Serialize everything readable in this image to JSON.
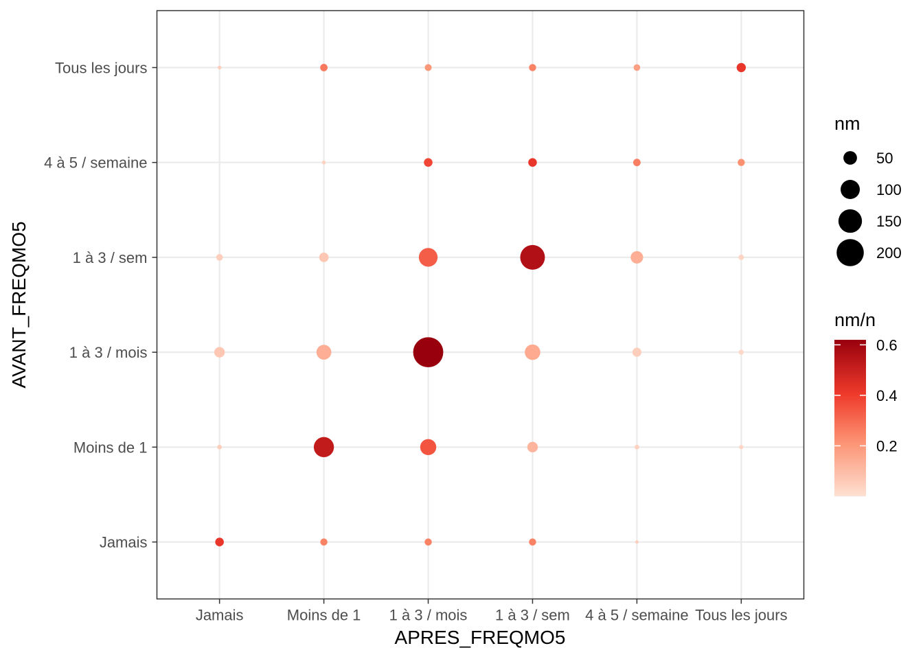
{
  "chart_data": {
    "type": "scatter",
    "xlabel": "APRES_FREQMO5",
    "ylabel": "AVANT_FREQMO5",
    "x_categories": [
      "Jamais",
      "Moins de 1",
      "1 à 3 / mois",
      "1 à 3 / sem",
      "4 à 5 / semaine",
      "Tous les jours"
    ],
    "y_categories": [
      "Jamais",
      "Moins de 1",
      "1 à 3 / mois",
      "1 à 3 / sem",
      "4 à 5 / semaine",
      "Tous les jours"
    ],
    "size_variable": "nm",
    "color_variable": "nm/n",
    "size_legend": {
      "title": "nm",
      "breaks": [
        50,
        100,
        150,
        200
      ]
    },
    "color_legend": {
      "title": "nm/n",
      "breaks": [
        0.2,
        0.4,
        0.6
      ],
      "labels": [
        "0.2",
        "0.4",
        "0.6"
      ],
      "range": [
        0.0,
        0.62
      ]
    },
    "color_scale": {
      "low": "#fee0d2",
      "mid1": "#fc9272",
      "mid2": "#ef3b2c",
      "high": "#99000d"
    },
    "grid": true,
    "legend_position": "right",
    "points": [
      {
        "x": "Jamais",
        "y": "Jamais",
        "nm": 20,
        "prop": 0.42
      },
      {
        "x": "Moins de 1",
        "y": "Jamais",
        "nm": 14,
        "prop": 0.25
      },
      {
        "x": "1 à 3 / mois",
        "y": "Jamais",
        "nm": 14,
        "prop": 0.25
      },
      {
        "x": "1 à 3 / sem",
        "y": "Jamais",
        "nm": 14,
        "prop": 0.25
      },
      {
        "x": "4 à 5 / semaine",
        "y": "Jamais",
        "nm": 3,
        "prop": 0.05
      },
      {
        "x": "Jamais",
        "y": "Moins de 1",
        "nm": 6,
        "prop": 0.05
      },
      {
        "x": "Moins de 1",
        "y": "Moins de 1",
        "nm": 110,
        "prop": 0.52
      },
      {
        "x": "1 à 3 / mois",
        "y": "Moins de 1",
        "nm": 70,
        "prop": 0.35
      },
      {
        "x": "1 à 3 / sem",
        "y": "Moins de 1",
        "nm": 30,
        "prop": 0.12
      },
      {
        "x": "4 à 5 / semaine",
        "y": "Moins de 1",
        "nm": 6,
        "prop": 0.04
      },
      {
        "x": "Tous les jours",
        "y": "Moins de 1",
        "nm": 5,
        "prop": 0.03
      },
      {
        "x": "Jamais",
        "y": "1 à 3 / mois",
        "nm": 30,
        "prop": 0.07
      },
      {
        "x": "Moins de 1",
        "y": "1 à 3 / mois",
        "nm": 60,
        "prop": 0.14
      },
      {
        "x": "1 à 3 / mois",
        "y": "1 à 3 / mois",
        "nm": 245,
        "prop": 0.62
      },
      {
        "x": "1 à 3 / sem",
        "y": "1 à 3 / mois",
        "nm": 65,
        "prop": 0.15
      },
      {
        "x": "4 à 5 / semaine",
        "y": "1 à 3 / mois",
        "nm": 22,
        "prop": 0.05
      },
      {
        "x": "Tous les jours",
        "y": "1 à 3 / mois",
        "nm": 7,
        "prop": 0.02
      },
      {
        "x": "Jamais",
        "y": "1 à 3 / sem",
        "nm": 12,
        "prop": 0.05
      },
      {
        "x": "Moins de 1",
        "y": "1 à 3 / sem",
        "nm": 24,
        "prop": 0.07
      },
      {
        "x": "1 à 3 / mois",
        "y": "1 à 3 / sem",
        "nm": 95,
        "prop": 0.33
      },
      {
        "x": "1 à 3 / sem",
        "y": "1 à 3 / sem",
        "nm": 165,
        "prop": 0.56
      },
      {
        "x": "4 à 5 / semaine",
        "y": "1 à 3 / sem",
        "nm": 42,
        "prop": 0.14
      },
      {
        "x": "Tous les jours",
        "y": "1 à 3 / sem",
        "nm": 8,
        "prop": 0.03
      },
      {
        "x": "Moins de 1",
        "y": "4 à 5 / semaine",
        "nm": 4,
        "prop": 0.04
      },
      {
        "x": "1 à 3 / mois",
        "y": "4 à 5 / semaine",
        "nm": 20,
        "prop": 0.38
      },
      {
        "x": "1 à 3 / sem",
        "y": "4 à 5 / semaine",
        "nm": 20,
        "prop": 0.42
      },
      {
        "x": "4 à 5 / semaine",
        "y": "4 à 5 / semaine",
        "nm": 15,
        "prop": 0.26
      },
      {
        "x": "Tous les jours",
        "y": "4 à 5 / semaine",
        "nm": 14,
        "prop": 0.22
      },
      {
        "x": "Jamais",
        "y": "Tous les jours",
        "nm": 4,
        "prop": 0.05
      },
      {
        "x": "Moins de 1",
        "y": "Tous les jours",
        "nm": 15,
        "prop": 0.27
      },
      {
        "x": "1 à 3 / mois",
        "y": "Tous les jours",
        "nm": 13,
        "prop": 0.2
      },
      {
        "x": "1 à 3 / sem",
        "y": "Tous les jours",
        "nm": 14,
        "prop": 0.25
      },
      {
        "x": "4 à 5 / semaine",
        "y": "Tous les jours",
        "nm": 12,
        "prop": 0.18
      },
      {
        "x": "Tous les jours",
        "y": "Tous les jours",
        "nm": 23,
        "prop": 0.42
      }
    ]
  }
}
